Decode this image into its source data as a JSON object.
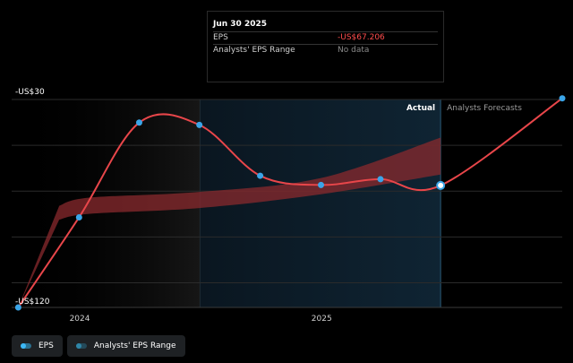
{
  "colors": {
    "background": "#000000",
    "eps_line": "#e8464a",
    "eps_point": "#3aa5e8",
    "range_band": "#8a2a2e",
    "forecast_bg": "#0f2433",
    "past_shade": "#161616",
    "gridline": "#2b2b2b"
  },
  "tooltip": {
    "date": "Jun 30 2025",
    "rows": [
      {
        "label": "EPS",
        "value": "-US$67.206"
      },
      {
        "label": "Analysts' EPS Range",
        "value": "No data"
      }
    ]
  },
  "legend": {
    "items": [
      {
        "label": "EPS",
        "icon": "eps-dot-icon"
      },
      {
        "label": "Analysts' EPS Range",
        "icon": "range-dot-icon"
      }
    ]
  },
  "chart_data": {
    "type": "line",
    "y_top_label": "-US$30",
    "y_bottom_label": "-US$120",
    "ylim": [
      -120,
      -30
    ],
    "xlim": [
      "2023-09-20",
      "2025-12-31"
    ],
    "x_ticks": [
      {
        "label": "2024",
        "date": "2024-01-01"
      },
      {
        "label": "2025",
        "date": "2025-01-01"
      }
    ],
    "actual_label": "Actual",
    "forecast_label": "Analysts Forecasts",
    "actual_end": "2025-06-30",
    "series": [
      {
        "name": "EPS",
        "points": [
          {
            "date": "2023-09-30",
            "value": -120
          },
          {
            "date": "2023-12-31",
            "value": -81
          },
          {
            "date": "2024-03-31",
            "value": -40
          },
          {
            "date": "2024-06-30",
            "value": -41
          },
          {
            "date": "2024-09-30",
            "value": -63
          },
          {
            "date": "2024-12-31",
            "value": -67
          },
          {
            "date": "2025-03-31",
            "value": -64.5
          },
          {
            "date": "2025-06-30",
            "value": -67.206
          },
          {
            "date": "2025-12-31",
            "value": -29.5
          }
        ]
      }
    ],
    "range_band": {
      "name": "Analysts' EPS Range",
      "points": [
        {
          "date": "2023-12-01",
          "low": -82,
          "high": -76
        },
        {
          "date": "2024-01-15",
          "low": -79.5,
          "high": -72.5
        },
        {
          "date": "2024-06-30",
          "low": -77,
          "high": -70
        },
        {
          "date": "2024-12-31",
          "low": -71,
          "high": -64
        },
        {
          "date": "2025-06-30",
          "low": -62.5,
          "high": -46.5
        }
      ]
    }
  }
}
